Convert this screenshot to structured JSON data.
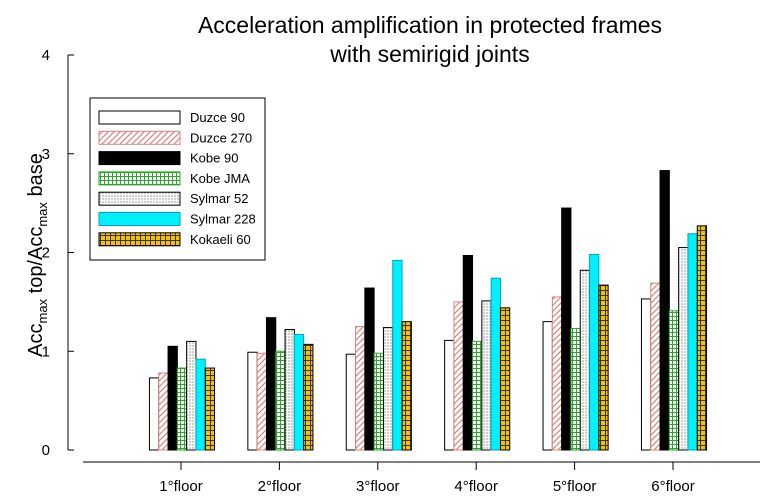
{
  "chart_data": {
    "type": "bar",
    "title_line1": "Acceleration amplification in protected frames",
    "title_line2": "with semirigid joints",
    "ylabel": {
      "p1": "Acc",
      "s1": "max",
      "p2": " top/Acc",
      "s2": "max",
      "p3": " base"
    },
    "ylim": [
      0,
      4
    ],
    "yticks": [
      "0",
      "1",
      "2",
      "3",
      "4"
    ],
    "categories": [
      "1°floor",
      "2°floor",
      "3°floor",
      "4°floor",
      "5°floor",
      "6°floor"
    ],
    "legend_position": "top-left",
    "series": [
      {
        "name": "Duzce 90",
        "pattern": "white",
        "values": [
          0.73,
          0.99,
          0.97,
          1.11,
          1.3,
          1.53
        ]
      },
      {
        "name": "Duzce 270",
        "pattern": "hatch",
        "values": [
          0.78,
          0.98,
          1.25,
          1.5,
          1.55,
          1.69
        ]
      },
      {
        "name": "Kobe 90",
        "pattern": "black",
        "values": [
          1.05,
          1.34,
          1.64,
          1.97,
          2.45,
          2.83
        ]
      },
      {
        "name": "Kobe JMA",
        "pattern": "greengrid",
        "values": [
          0.83,
          1.0,
          0.98,
          1.1,
          1.23,
          1.41
        ]
      },
      {
        "name": "Sylmar 52",
        "pattern": "dots",
        "values": [
          1.1,
          1.22,
          1.24,
          1.51,
          1.82,
          2.05
        ]
      },
      {
        "name": "Sylmar 228",
        "pattern": "cyan",
        "values": [
          0.92,
          1.17,
          1.92,
          1.74,
          1.98,
          2.19
        ]
      },
      {
        "name": "Kokaeli 60",
        "pattern": "goldgrid",
        "values": [
          0.83,
          1.07,
          1.3,
          1.44,
          1.67,
          2.27
        ]
      }
    ],
    "colors": {
      "hatch": "#d9847e",
      "black": "#000000",
      "greengrid": "#2aa62a",
      "cyan": "#00f0ff",
      "goldgrid": "#f5c000"
    }
  }
}
